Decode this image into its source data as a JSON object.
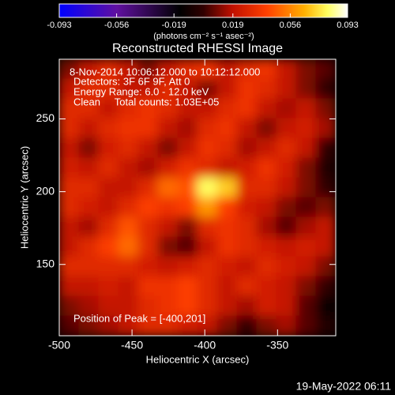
{
  "chart_data": {
    "type": "heatmap",
    "title": "Reconstructed RHESSI Image",
    "colorbar_label": "(photons cm⁻² s⁻¹ asec⁻²)",
    "xlabel": "Heliocentric X (arcsec)",
    "ylabel": "Heliocentric Y (arcsec)",
    "annotations": [
      "8-Nov-2014 10:06:12.000 to 10:12:12.000",
      "Detectors: 3F 6F 9F, Att 0",
      "Energy Range: 6.0 - 12.0 keV",
      "Clean     Total counts: 1.03E+05"
    ],
    "peak_label": "Position of Peak = [-400,201]",
    "footer": "19-May-2022 06:11",
    "xlim": [
      -500,
      -310
    ],
    "ylim": [
      101,
      291
    ],
    "xticks": [
      -500,
      -450,
      -400,
      -350
    ],
    "yticks": [
      150,
      200,
      250
    ],
    "clim": [
      -0.093,
      0.093
    ],
    "cticks": [
      -0.093,
      -0.056,
      -0.019,
      0.019,
      0.056,
      0.093
    ],
    "colormap": [
      [
        0,
        "#0000ff"
      ],
      [
        0.2,
        "#6010a0"
      ],
      [
        0.42,
        "#000000"
      ],
      [
        0.5,
        "#300000"
      ],
      [
        0.6,
        "#c01000"
      ],
      [
        0.72,
        "#ff4000"
      ],
      [
        0.85,
        "#ffb000"
      ],
      [
        0.93,
        "#ffff60"
      ],
      [
        1,
        "#ffffff"
      ]
    ],
    "z": [
      [
        0.01,
        0.02,
        0.03,
        0.02,
        0.01,
        0.02,
        0.03,
        0.035,
        0.02,
        0.03,
        0.035,
        0.02,
        0.01,
        0.005
      ],
      [
        0.02,
        0.03,
        0.03,
        0.02,
        0.02,
        0.03,
        0.02,
        0.01,
        0.02,
        0.035,
        0.03,
        0.02,
        0.01,
        0.0
      ],
      [
        0.03,
        0.03,
        0.02,
        0.03,
        0.035,
        0.03,
        0.02,
        0.02,
        0.03,
        0.035,
        0.02,
        0.015,
        0.02,
        0.01
      ],
      [
        0.03,
        0.02,
        0.03,
        0.035,
        0.035,
        0.02,
        0.015,
        0.03,
        0.035,
        0.02,
        0.01,
        0.02,
        0.025,
        0.015
      ],
      [
        0.02,
        0.01,
        0.025,
        0.03,
        0.02,
        0.01,
        0.02,
        0.035,
        0.03,
        0.015,
        0.02,
        0.03,
        0.02,
        0.0
      ],
      [
        0.025,
        0.02,
        0.03,
        0.02,
        0.015,
        0.025,
        0.035,
        0.03,
        0.02,
        0.025,
        0.035,
        0.025,
        0.01,
        -0.005
      ],
      [
        0.03,
        0.03,
        0.02,
        0.02,
        0.03,
        0.05,
        0.045,
        0.08,
        0.07,
        0.03,
        0.03,
        0.02,
        0.01,
        0.0
      ],
      [
        0.03,
        0.025,
        0.02,
        0.03,
        0.04,
        0.035,
        0.04,
        0.06,
        0.04,
        0.025,
        0.02,
        0.01,
        0.005,
        0.01
      ],
      [
        0.02,
        0.015,
        0.03,
        0.045,
        0.03,
        0.02,
        0.01,
        0.03,
        0.035,
        0.03,
        0.015,
        0.005,
        0.015,
        0.02
      ],
      [
        0.02,
        0.03,
        0.04,
        0.05,
        0.03,
        0.01,
        0.005,
        0.02,
        0.035,
        0.03,
        0.025,
        0.02,
        0.025,
        0.02
      ],
      [
        0.03,
        0.03,
        0.03,
        0.03,
        0.025,
        0.02,
        0.025,
        0.03,
        0.025,
        0.02,
        0.03,
        0.025,
        0.02,
        0.01
      ],
      [
        0.02,
        0.02,
        0.025,
        0.02,
        0.035,
        0.035,
        0.04,
        0.03,
        0.02,
        0.03,
        0.025,
        0.02,
        0.01,
        0.0
      ],
      [
        0.01,
        0.015,
        0.02,
        0.02,
        0.03,
        0.035,
        0.04,
        0.03,
        0.02,
        0.015,
        0.025,
        0.02,
        0.005,
        -0.01
      ],
      [
        0.005,
        0.01,
        0.015,
        0.02,
        0.03,
        0.03,
        0.025,
        0.02,
        0.01,
        0.0,
        0.01,
        0.015,
        0.005,
        -0.005
      ]
    ]
  }
}
